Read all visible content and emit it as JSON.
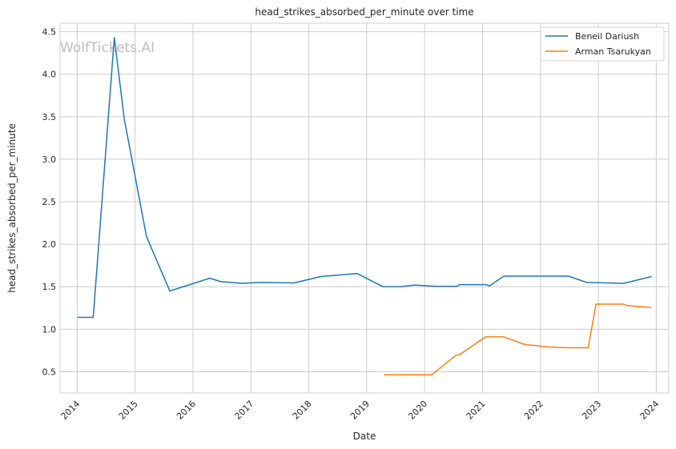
{
  "chart_data": {
    "type": "line",
    "title": "head_strikes_absorbed_per_minute over time",
    "xlabel": "Date",
    "ylabel": "head_strikes_absorbed_per_minute",
    "watermark": "WolfTickets.AI",
    "x_ticks": [
      "2014",
      "2015",
      "2016",
      "2017",
      "2018",
      "2019",
      "2020",
      "2021",
      "2022",
      "2023",
      "2024"
    ],
    "y_ticks": [
      "0.5",
      "1.0",
      "1.5",
      "2.0",
      "2.5",
      "3.0",
      "3.5",
      "4.0",
      "4.5"
    ],
    "xlim": [
      "2013-09-15",
      "2024-03-20"
    ],
    "ylim": [
      0.25,
      4.6
    ],
    "grid": true,
    "legend_position": "top-right",
    "series": [
      {
        "name": "Beneil Dariush",
        "color": "#1f77b4",
        "points": [
          [
            "2014-01-04",
            1.14
          ],
          [
            "2014-04-12",
            1.14
          ],
          [
            "2014-08-23",
            4.43
          ],
          [
            "2014-10-25",
            3.47
          ],
          [
            "2015-03-14",
            2.09
          ],
          [
            "2015-08-08",
            1.45
          ],
          [
            "2016-04-16",
            1.6
          ],
          [
            "2016-06-25",
            1.56
          ],
          [
            "2016-11-05",
            1.54
          ],
          [
            "2017-03-04",
            1.55
          ],
          [
            "2017-09-30",
            1.545
          ],
          [
            "2018-03-17",
            1.62
          ],
          [
            "2018-11-03",
            1.655
          ],
          [
            "2019-04-13",
            1.5
          ],
          [
            "2019-08-03",
            1.5
          ],
          [
            "2019-11-02",
            1.52
          ],
          [
            "2020-03-07",
            1.505
          ],
          [
            "2020-07-25",
            1.505
          ],
          [
            "2020-08-08",
            1.525
          ],
          [
            "2021-01-23",
            1.525
          ],
          [
            "2021-02-13",
            1.51
          ],
          [
            "2021-05-15",
            1.625
          ],
          [
            "2021-10-30",
            1.625
          ],
          [
            "2022-06-25",
            1.625
          ],
          [
            "2022-10-22",
            1.55
          ],
          [
            "2023-06-10",
            1.54
          ],
          [
            "2023-12-02",
            1.62
          ]
        ]
      },
      {
        "name": "Arman Tsarukyan",
        "color": "#ff7f0e",
        "points": [
          [
            "2019-04-20",
            0.465
          ],
          [
            "2019-08-31",
            0.465
          ],
          [
            "2020-02-15",
            0.465
          ],
          [
            "2020-07-18",
            0.695
          ],
          [
            "2020-08-08",
            0.7
          ],
          [
            "2021-01-20",
            0.91
          ],
          [
            "2021-05-15",
            0.91
          ],
          [
            "2021-09-25",
            0.82
          ],
          [
            "2022-02-26",
            0.79
          ],
          [
            "2022-06-25",
            0.782
          ],
          [
            "2022-10-29",
            0.782
          ],
          [
            "2022-12-17",
            1.295
          ],
          [
            "2023-06-10",
            1.295
          ],
          [
            "2023-06-24",
            1.28
          ],
          [
            "2023-12-02",
            1.255
          ]
        ]
      }
    ]
  }
}
